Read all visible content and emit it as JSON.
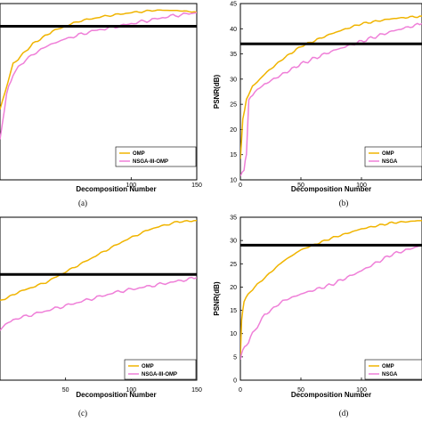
{
  "colors": {
    "omp": "#f0b400",
    "nsga": "#ef7fd8",
    "threshold": "#000000",
    "axis": "#000000",
    "background": "#ffffff"
  },
  "chart_data": [
    {
      "id": "a",
      "type": "line",
      "caption": "(a)",
      "xlabel": "Decomposition Number",
      "ylabel": "",
      "xlim": [
        0,
        150
      ],
      "ylim": [
        10,
        45
      ],
      "xticks": [
        100,
        150
      ],
      "yticks": [],
      "threshold": 40.5,
      "legend": {
        "placement": "bottom-right",
        "entries": [
          "OMP",
          "NSGA-III-OMP"
        ]
      },
      "series": [
        {
          "name": "OMP",
          "x": [
            0,
            10,
            25,
            40,
            60,
            80,
            100,
            120,
            135,
            150
          ],
          "values": [
            24,
            33,
            37,
            39.5,
            41.5,
            42.5,
            43.2,
            43.7,
            43.6,
            43.3
          ]
        },
        {
          "name": "NSGA-III-OMP",
          "x": [
            0,
            5,
            10,
            20,
            35,
            50,
            70,
            90,
            110,
            130,
            150
          ],
          "values": [
            18,
            27,
            31,
            34,
            36.5,
            38,
            39.5,
            40.5,
            41.5,
            42.5,
            43.2
          ]
        }
      ]
    },
    {
      "id": "b",
      "type": "line",
      "caption": "(b)",
      "xlabel": "Decomposition Number",
      "ylabel": "PSNR(dB)",
      "xlim": [
        0,
        150
      ],
      "ylim": [
        10,
        45
      ],
      "xticks": [
        0,
        50,
        100
      ],
      "yticks": [
        10,
        15,
        20,
        25,
        30,
        35,
        40,
        45
      ],
      "threshold": 37,
      "legend": {
        "placement": "bottom-right",
        "entries": [
          "OMP",
          "NSGA"
        ]
      },
      "series": [
        {
          "name": "OMP",
          "x": [
            0,
            2,
            5,
            10,
            20,
            35,
            50,
            75,
            100,
            125,
            150
          ],
          "values": [
            14,
            22,
            26,
            28.5,
            31,
            34,
            36.5,
            39,
            41,
            42,
            42.5
          ]
        },
        {
          "name": "NSGA",
          "x": [
            0,
            3,
            5,
            7,
            10,
            20,
            35,
            50,
            75,
            100,
            125,
            150
          ],
          "values": [
            11,
            12,
            15,
            26,
            27,
            29,
            31,
            33,
            35.5,
            37.5,
            39.5,
            41
          ]
        }
      ]
    },
    {
      "id": "c",
      "type": "line",
      "caption": "(c)",
      "xlabel": "Decomposition Number",
      "ylabel": "",
      "xlim": [
        0,
        150
      ],
      "ylim": [
        0,
        35
      ],
      "xticks": [
        50,
        100,
        150
      ],
      "yticks": [],
      "threshold": 22.7,
      "legend": {
        "placement": "bottom-right",
        "entries": [
          "OMP",
          "NSGA-III-OMP"
        ]
      },
      "series": [
        {
          "name": "OMP",
          "x": [
            0,
            15,
            35,
            55,
            75,
            95,
            115,
            135,
            150
          ],
          "values": [
            17,
            19,
            21,
            24,
            27,
            30,
            32.5,
            34,
            34.3
          ]
        },
        {
          "name": "NSGA-III-OMP",
          "x": [
            0,
            10,
            30,
            50,
            70,
            90,
            110,
            130,
            150
          ],
          "values": [
            11,
            13,
            14.5,
            16,
            17.5,
            19,
            20,
            21,
            22
          ]
        }
      ]
    },
    {
      "id": "d",
      "type": "line",
      "caption": "(d)",
      "xlabel": "Decomposition Number",
      "ylabel": "PSNR(dB)",
      "xlim": [
        0,
        150
      ],
      "ylim": [
        0,
        35
      ],
      "xticks": [
        0,
        50,
        100
      ],
      "yticks": [
        0,
        5,
        10,
        15,
        20,
        25,
        30,
        35
      ],
      "threshold": 29,
      "legend": {
        "placement": "bottom-right",
        "entries": [
          "OMP",
          "NSGA"
        ]
      },
      "series": [
        {
          "name": "OMP",
          "x": [
            0,
            1,
            3,
            8,
            20,
            35,
            50,
            75,
            100,
            125,
            150
          ],
          "values": [
            5,
            13,
            17,
            19,
            22,
            25.5,
            28,
            30.5,
            32.5,
            33.8,
            34.3
          ]
        },
        {
          "name": "NSGA",
          "x": [
            0,
            2,
            5,
            10,
            20,
            35,
            50,
            75,
            100,
            125,
            150
          ],
          "values": [
            4.5,
            6.5,
            7.5,
            10,
            14,
            17,
            18.5,
            20.5,
            23.5,
            27,
            29
          ]
        }
      ]
    }
  ]
}
